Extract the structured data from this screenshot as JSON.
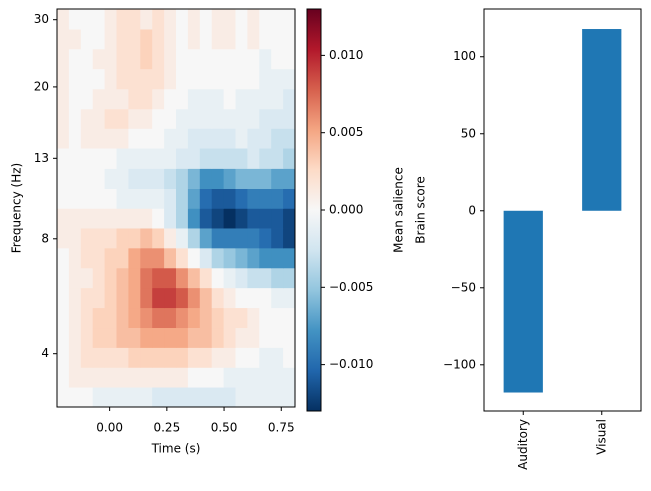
{
  "chart_data": [
    {
      "type": "heatmap",
      "xlabel": "Time (s)",
      "ylabel": "Frequency (Hz)",
      "x": [
        -0.204,
        -0.152,
        -0.1,
        -0.048,
        0.004,
        0.056,
        0.108,
        0.16,
        0.212,
        0.264,
        0.316,
        0.368,
        0.42,
        0.472,
        0.524,
        0.576,
        0.628,
        0.68,
        0.732,
        0.784
      ],
      "y": [
        3.08,
        3.47,
        3.91,
        4.41,
        4.97,
        5.61,
        6.32,
        7.13,
        8.04,
        9.06,
        10.2,
        11.5,
        13.0,
        14.7,
        16.5,
        18.6,
        21.0,
        23.7,
        26.7,
        30.1
      ],
      "z": [
        [
          0,
          0,
          0,
          -0.001,
          -0.001,
          -0.001,
          -0.001,
          -0.001,
          -0.002,
          -0.002,
          -0.002,
          -0.002,
          -0.002,
          -0.002,
          -0.002,
          -0.001,
          -0.001,
          -0.001,
          -0.001,
          -0.001
        ],
        [
          0,
          0.001,
          0.001,
          0.001,
          0.001,
          0.001,
          0.001,
          0.001,
          0.001,
          0.001,
          0.001,
          0,
          0,
          0,
          -0.001,
          -0.001,
          -0.001,
          -0.001,
          -0.001,
          -0.001
        ],
        [
          0,
          0.001,
          0.002,
          0.002,
          0.002,
          0.002,
          0.003,
          0.003,
          0.003,
          0.003,
          0.003,
          0.002,
          0.002,
          0.001,
          0.001,
          0,
          0,
          -0.001,
          -0.001,
          0
        ],
        [
          0,
          0.001,
          0.002,
          0.003,
          0.003,
          0.004,
          0.004,
          0.005,
          0.005,
          0.005,
          0.005,
          0.004,
          0.004,
          0.003,
          0.002,
          0.001,
          0.001,
          0,
          0,
          0
        ],
        [
          0,
          0.001,
          0.002,
          0.003,
          0.003,
          0.004,
          0.005,
          0.006,
          0.007,
          0.007,
          0.006,
          0.005,
          0.004,
          0.003,
          0.002,
          0.002,
          0.001,
          0,
          0,
          0
        ],
        [
          0,
          0.001,
          0.002,
          0.002,
          0.003,
          0.004,
          0.005,
          0.007,
          0.009,
          0.009,
          0.008,
          0.006,
          0.004,
          0.002,
          0.001,
          0,
          0,
          0,
          -0.001,
          -0.001
        ],
        [
          0,
          0.001,
          0.001,
          0.002,
          0.003,
          0.004,
          0.005,
          0.007,
          0.008,
          0.008,
          0.006,
          0.004,
          0.002,
          0,
          -0.001,
          -0.002,
          -0.003,
          -0.003,
          -0.004,
          -0.004
        ],
        [
          0,
          0.001,
          0.002,
          0.002,
          0.003,
          0.003,
          0.005,
          0.006,
          0.006,
          0.004,
          0.002,
          0,
          -0.002,
          -0.004,
          -0.005,
          -0.006,
          -0.007,
          -0.008,
          -0.008,
          -0.008
        ],
        [
          0.001,
          0.001,
          0.002,
          0.002,
          0.002,
          0.003,
          0.003,
          0.004,
          0.003,
          0.001,
          -0.001,
          -0.004,
          -0.007,
          -0.009,
          -0.009,
          -0.009,
          -0.009,
          -0.01,
          -0.011,
          -0.012
        ],
        [
          0.001,
          0.001,
          0.001,
          0.001,
          0.001,
          0.001,
          0.001,
          0.001,
          0,
          -0.002,
          -0.004,
          -0.008,
          -0.011,
          -0.012,
          -0.013,
          -0.012,
          -0.011,
          -0.011,
          -0.011,
          -0.012
        ],
        [
          0,
          0,
          0,
          0,
          0,
          -0.001,
          -0.001,
          -0.001,
          -0.001,
          -0.002,
          -0.004,
          -0.007,
          -0.01,
          -0.011,
          -0.011,
          -0.01,
          -0.009,
          -0.009,
          -0.009,
          -0.01
        ],
        [
          0,
          0,
          0,
          0,
          -0.001,
          -0.001,
          -0.002,
          -0.002,
          -0.002,
          -0.003,
          -0.004,
          -0.006,
          -0.008,
          -0.008,
          -0.007,
          -0.006,
          -0.006,
          -0.006,
          -0.007,
          -0.007
        ],
        [
          0,
          0,
          0,
          0,
          0,
          -0.001,
          -0.001,
          -0.001,
          -0.001,
          -0.001,
          -0.002,
          -0.002,
          -0.003,
          -0.003,
          -0.003,
          -0.003,
          -0.002,
          -0.003,
          -0.003,
          -0.004
        ],
        [
          0.001,
          0,
          0.001,
          0.001,
          0.001,
          0.001,
          0,
          0,
          0,
          -0.001,
          -0.001,
          -0.002,
          -0.002,
          -0.002,
          -0.002,
          -0.001,
          -0.002,
          -0.002,
          -0.003,
          -0.003
        ],
        [
          0.001,
          0,
          0.001,
          0.001,
          0.002,
          0.002,
          0.001,
          0.001,
          0,
          0,
          -0.001,
          -0.001,
          -0.001,
          -0.001,
          -0.001,
          -0.001,
          -0.001,
          -0.002,
          -0.002,
          -0.002
        ],
        [
          0.001,
          0,
          0,
          0.001,
          0.001,
          0.001,
          0.002,
          0.002,
          0.001,
          0,
          0,
          -0.001,
          -0.001,
          -0.001,
          0,
          -0.001,
          -0.001,
          -0.001,
          -0.001,
          -0.002
        ],
        [
          0.001,
          0,
          0,
          0,
          0.001,
          0.002,
          0.002,
          0.002,
          0.002,
          0.001,
          0,
          0,
          0,
          0,
          0,
          0,
          0,
          -0.001,
          -0.001,
          -0.001
        ],
        [
          0.001,
          0,
          0,
          0.001,
          0.001,
          0.002,
          0.002,
          0.003,
          0.002,
          0.001,
          0,
          0,
          0,
          0,
          0,
          0,
          0,
          -0.001,
          0,
          0
        ],
        [
          0.001,
          0.001,
          0,
          0,
          0.001,
          0.002,
          0.002,
          0.003,
          0.002,
          0.001,
          0,
          0.001,
          0,
          0.001,
          0.001,
          0,
          0.001,
          0,
          0,
          0
        ],
        [
          0.001,
          0,
          0,
          0,
          0.001,
          0.002,
          0.002,
          0.001,
          0.002,
          0.001,
          0,
          0.001,
          0,
          0.001,
          0.001,
          0,
          0.001,
          0,
          0,
          0
        ]
      ],
      "xlim": [
        -0.23,
        0.81
      ],
      "ylim": [
        2.9,
        32
      ],
      "yscale": "log",
      "xticks": [
        {
          "value": 0,
          "label": "0.00"
        },
        {
          "value": 0.25,
          "label": "0.25"
        },
        {
          "value": 0.5,
          "label": "0.50"
        },
        {
          "value": 0.75,
          "label": "0.75"
        }
      ],
      "yticks": [
        4,
        8,
        13,
        20,
        30
      ],
      "colorbar": {
        "label": "Mean salience",
        "lim": [
          -0.013,
          0.013
        ],
        "ticks": [
          {
            "value": -0.01,
            "label": "−0.010"
          },
          {
            "value": -0.005,
            "label": "−0.005"
          },
          {
            "value": 0,
            "label": "0.000"
          },
          {
            "value": 0.005,
            "label": "0.005"
          },
          {
            "value": 0.01,
            "label": "0.010"
          }
        ],
        "colormap": [
          "#053061",
          "#2166ac",
          "#4393c3",
          "#92c5de",
          "#d1e5f0",
          "#f7f7f7",
          "#fddbc7",
          "#f4a582",
          "#d6604d",
          "#b2182b",
          "#67001f"
        ]
      }
    },
    {
      "type": "bar",
      "ylabel": "Brain score",
      "categories": [
        "Auditory",
        "Visual"
      ],
      "values": [
        -118,
        118
      ],
      "color": "#1f77b4",
      "ylim": [
        -130,
        131
      ],
      "yticks": [
        {
          "value": -100,
          "label": "−100"
        },
        {
          "value": -50,
          "label": "−50"
        },
        0,
        50,
        100
      ]
    }
  ]
}
